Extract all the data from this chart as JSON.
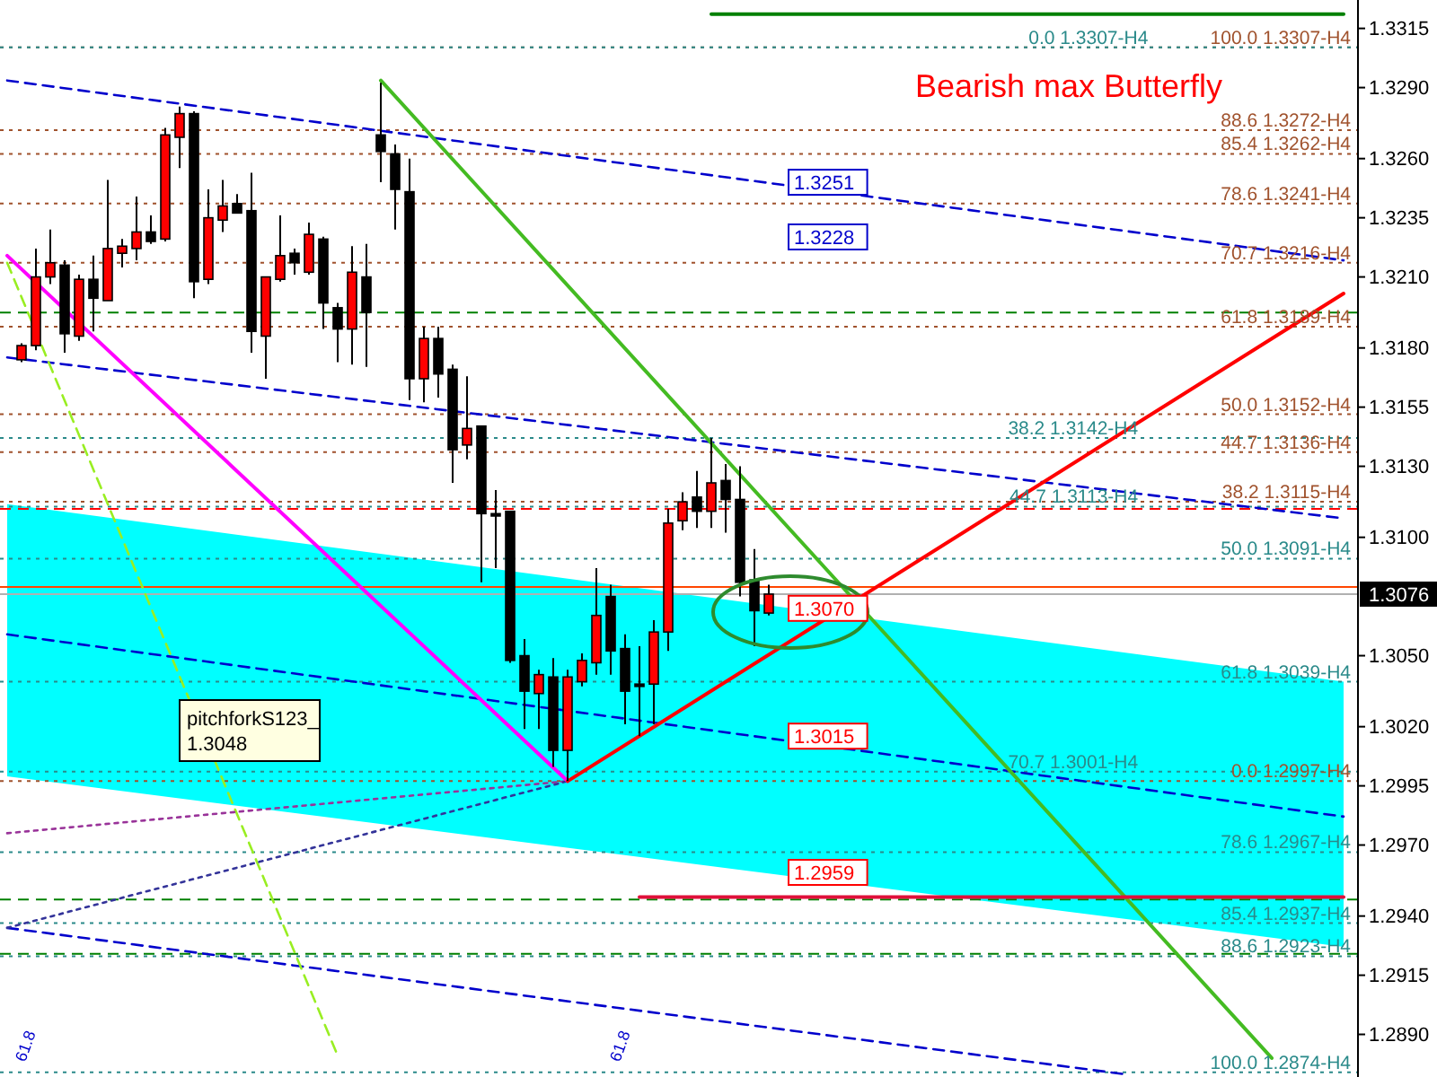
{
  "chart_data": {
    "type": "candlestick",
    "title": "Bearish max Butterfly",
    "categories": [
      null,
      null,
      null,
      null,
      null,
      null,
      null,
      null,
      null,
      null,
      null,
      null,
      null,
      null,
      null,
      null,
      null,
      null,
      null,
      null,
      null,
      null,
      null,
      null,
      null,
      null,
      null,
      null,
      null,
      null,
      null,
      null,
      null,
      null,
      null,
      null,
      null,
      null,
      null,
      null,
      null,
      null,
      null,
      null,
      null,
      null,
      null,
      null,
      null,
      null,
      null,
      null,
      null,
      null,
      null,
      null,
      null,
      null,
      null,
      null,
      null,
      null,
      null,
      null,
      null,
      null,
      null,
      null,
      null,
      null,
      null,
      null,
      null,
      null,
      null,
      null,
      null,
      null,
      null,
      null,
      null,
      null,
      null,
      null,
      null,
      null,
      null,
      null,
      null,
      null,
      null,
      null,
      null,
      null
    ],
    "ohlc": [
      null,
      [
        1.3175,
        1.3182,
        1.3174,
        1.3181
      ],
      [
        1.3181,
        1.3222,
        1.3179,
        1.321
      ],
      [
        1.321,
        1.323,
        1.3207,
        1.3216
      ],
      [
        1.3215,
        1.3217,
        1.3178,
        1.3186
      ],
      [
        1.3185,
        1.3211,
        1.3183,
        1.3209
      ],
      [
        1.3209,
        1.3219,
        1.3187,
        1.3201
      ],
      [
        1.32,
        1.3251,
        1.32,
        1.3222
      ],
      [
        1.322,
        1.3226,
        1.3214,
        1.3223
      ],
      [
        1.3222,
        1.3244,
        1.3217,
        1.3229
      ],
      [
        1.3229,
        1.3236,
        1.3224,
        1.3225
      ],
      [
        1.3226,
        1.3273,
        1.3225,
        1.327
      ],
      [
        1.3269,
        1.3282,
        1.3256,
        1.3279
      ],
      [
        1.3279,
        1.328,
        1.3201,
        1.3208
      ],
      [
        1.3209,
        1.3247,
        1.3207,
        1.3235
      ],
      [
        1.3234,
        1.3251,
        1.3229,
        1.324
      ],
      [
        1.3241,
        1.3245,
        1.3237,
        1.3237
      ],
      [
        1.3238,
        1.3254,
        1.3178,
        1.3187
      ],
      [
        1.3185,
        1.321,
        1.3167,
        1.321
      ],
      [
        1.3209,
        1.3236,
        1.3208,
        1.3219
      ],
      [
        1.322,
        1.3222,
        1.3211,
        1.3216
      ],
      [
        1.3212,
        1.3233,
        1.3211,
        1.3228
      ],
      [
        1.3226,
        1.3227,
        1.3188,
        1.3199
      ],
      [
        1.3197,
        1.3199,
        1.3174,
        1.3188
      ],
      [
        1.3188,
        1.3223,
        1.3173,
        1.3212
      ],
      [
        1.321,
        1.3224,
        1.3172,
        1.3195
      ],
      [
        1.327,
        1.3292,
        1.325,
        1.3263
      ],
      [
        1.3262,
        1.3266,
        1.323,
        1.3247
      ],
      [
        1.3246,
        1.326,
        1.3158,
        1.3167
      ],
      [
        1.3167,
        1.3189,
        1.3157,
        1.3184
      ],
      [
        1.3184,
        1.3189,
        1.3159,
        1.3169
      ],
      [
        1.3171,
        1.3173,
        1.3123,
        1.3137
      ],
      [
        1.3139,
        1.3168,
        1.3133,
        1.3146
      ],
      [
        1.3147,
        1.3147,
        1.3081,
        1.311
      ],
      [
        1.311,
        1.312,
        1.3087,
        1.3109
      ],
      [
        1.3111,
        1.3111,
        1.3047,
        1.3048
      ],
      [
        1.305,
        1.3057,
        1.3019,
        1.3035
      ],
      [
        1.3034,
        1.3044,
        1.3019,
        1.3042
      ],
      [
        1.3041,
        1.3049,
        1.3003,
        1.301
      ],
      [
        1.301,
        1.3044,
        1.2997,
        1.3041
      ],
      [
        1.3039,
        1.3051,
        1.3037,
        1.3048
      ],
      [
        1.3047,
        1.3087,
        1.3042,
        1.3067
      ],
      [
        1.3075,
        1.308,
        1.3042,
        1.3052
      ],
      [
        1.3053,
        1.3059,
        1.3021,
        1.3035
      ],
      [
        1.3038,
        1.3054,
        1.3016,
        1.3037
      ],
      [
        1.3038,
        1.3065,
        1.3021,
        1.306
      ],
      [
        1.306,
        1.3112,
        1.3052,
        1.3106
      ],
      [
        1.3107,
        1.3119,
        1.3103,
        1.3115
      ],
      [
        1.3117,
        1.3128,
        1.3104,
        1.3111
      ],
      [
        1.3111,
        1.3142,
        1.3104,
        1.3123
      ],
      [
        1.3124,
        1.3131,
        1.3102,
        1.3116
      ],
      [
        1.3116,
        1.313,
        1.3075,
        1.3081
      ],
      [
        1.3082,
        1.3095,
        1.3054,
        1.3069
      ],
      [
        1.3068,
        1.308,
        1.3067,
        1.3076
      ],
      null,
      null,
      null,
      null,
      null,
      null,
      null,
      null,
      null,
      null,
      null,
      null,
      null,
      null,
      null,
      null,
      null,
      null,
      null,
      null,
      null,
      null,
      null,
      null,
      null,
      null,
      null,
      null,
      null,
      null,
      null,
      null,
      null,
      null,
      null,
      null,
      null,
      null,
      null,
      null
    ],
    "series": [
      {
        "type": "line",
        "color": "#0000cc",
        "line_style": "dashed",
        "values": [
          1.3059,
          null,
          null,
          null,
          null,
          null,
          null,
          null,
          null,
          null,
          null,
          null,
          null,
          null,
          null,
          null,
          null,
          null,
          null,
          null,
          null,
          null,
          null,
          null,
          null,
          null,
          null,
          null,
          null,
          null,
          null,
          null,
          null,
          null,
          null,
          null,
          null,
          null,
          null,
          null,
          null,
          null,
          null,
          null,
          null,
          null,
          null,
          null,
          null,
          null,
          null,
          null,
          null,
          null,
          null,
          null,
          null,
          null,
          null,
          null,
          null,
          null,
          null,
          null,
          null,
          null,
          null,
          null,
          null,
          null,
          null,
          null,
          null,
          null,
          null,
          null,
          null,
          null,
          null,
          null,
          null,
          null,
          null,
          null,
          null,
          null,
          null,
          null,
          null,
          null,
          null,
          null,
          null,
          1.2982
        ],
        "lower": [
          1.2999,
          null,
          null,
          null,
          null,
          null,
          null,
          null,
          null,
          null,
          null,
          null,
          null,
          null,
          null,
          null,
          null,
          null,
          null,
          null,
          null,
          null,
          null,
          null,
          null,
          null,
          null,
          null,
          null,
          null,
          null,
          null,
          null,
          null,
          null,
          null,
          null,
          null,
          null,
          null,
          null,
          null,
          null,
          null,
          null,
          null,
          null,
          null,
          null,
          null,
          null,
          null,
          null,
          null,
          null,
          null,
          null,
          null,
          null,
          null,
          null,
          null,
          null,
          null,
          null,
          null,
          null,
          null,
          null,
          null,
          null,
          null,
          null,
          null,
          null,
          null,
          null,
          null,
          null,
          null,
          null,
          null,
          null,
          null,
          null,
          null,
          null,
          null,
          null,
          null,
          null,
          null,
          null,
          1.2927
        ],
        "upper": [
          1.3114,
          null,
          null,
          null,
          null,
          null,
          null,
          null,
          null,
          null,
          null,
          null,
          null,
          null,
          null,
          null,
          null,
          null,
          null,
          null,
          null,
          null,
          null,
          null,
          null,
          null,
          null,
          null,
          null,
          null,
          null,
          null,
          null,
          null,
          null,
          null,
          null,
          null,
          null,
          null,
          null,
          null,
          null,
          null,
          null,
          null,
          null,
          null,
          null,
          null,
          null,
          null,
          null,
          null,
          null,
          null,
          null,
          null,
          null,
          null,
          null,
          null,
          null,
          null,
          null,
          null,
          null,
          null,
          null,
          null,
          null,
          null,
          null,
          null,
          null,
          null,
          null,
          null,
          null,
          null,
          null,
          null,
          null,
          null,
          null,
          null,
          null,
          null,
          null,
          null,
          null,
          null,
          null,
          1.3039
        ]
      },
      {
        "type": "line",
        "color": "#0000cc",
        "line_style": "dashed",
        "values": [
          1.3293,
          null,
          null,
          null,
          null,
          null,
          null,
          null,
          null,
          null,
          null,
          null,
          null,
          null,
          null,
          null,
          null,
          null,
          null,
          null,
          null,
          null,
          null,
          null,
          null,
          null,
          null,
          null,
          null,
          null,
          null,
          null,
          null,
          null,
          null,
          null,
          null,
          null,
          null,
          null,
          null,
          null,
          null,
          null,
          null,
          null,
          null,
          null,
          null,
          null,
          null,
          null,
          null,
          null,
          null,
          null,
          null,
          null,
          null,
          null,
          null,
          null,
          null,
          null,
          null,
          null,
          null,
          null,
          null,
          null,
          null,
          null,
          null,
          null,
          null,
          null,
          null,
          null,
          null,
          null,
          null,
          null,
          null,
          null,
          null,
          null,
          null,
          null,
          null,
          null,
          null,
          null,
          null,
          1.3217
        ]
      },
      {
        "type": "line",
        "color": "#0000cc",
        "line_style": "dashed",
        "values": [
          1.3176,
          null,
          null,
          null,
          null,
          null,
          null,
          null,
          null,
          null,
          null,
          null,
          null,
          null,
          null,
          null,
          null,
          null,
          null,
          null,
          null,
          null,
          null,
          null,
          null,
          null,
          null,
          null,
          null,
          null,
          null,
          null,
          null,
          null,
          null,
          null,
          null,
          null,
          null,
          null,
          null,
          null,
          null,
          null,
          null,
          null,
          null,
          null,
          null,
          null,
          null,
          null,
          null,
          null,
          null,
          null,
          null,
          null,
          null,
          null,
          null,
          null,
          null,
          null,
          null,
          null,
          null,
          null,
          null,
          null,
          null,
          null,
          null,
          null,
          null,
          null,
          null,
          null,
          null,
          null,
          null,
          null,
          null,
          null,
          null,
          null,
          null,
          null,
          null,
          null,
          null,
          null,
          null,
          1.3108
        ]
      },
      {
        "type": "line",
        "color": "#0000cc",
        "line_style": "dashed",
        "values": [
          1.2935,
          null,
          null,
          null,
          null,
          null,
          null,
          null,
          null,
          null,
          null,
          null,
          null,
          null,
          null,
          null,
          null,
          null,
          null,
          null,
          null,
          null,
          null,
          null,
          null,
          null,
          null,
          null,
          null,
          null,
          null,
          null,
          null,
          null,
          null,
          null,
          null,
          null,
          null,
          null,
          null,
          null,
          null,
          null,
          null,
          null,
          null,
          null,
          null,
          null,
          null,
          null,
          null,
          null,
          null,
          null,
          null,
          null,
          null,
          null,
          null,
          null,
          null,
          null,
          null,
          null,
          null,
          null,
          null,
          null,
          null,
          null,
          null,
          null,
          null,
          null,
          null,
          null,
          1.2873,
          null,
          null,
          null,
          null,
          null,
          null,
          null,
          null,
          null,
          null,
          null,
          null,
          null,
          null,
          null
        ]
      },
      {
        "type": "line",
        "color": "#99ee22",
        "line_style": "dashed",
        "values": [
          1.3216,
          null,
          null,
          null,
          null,
          null,
          null,
          null,
          null,
          null,
          null,
          null,
          null,
          null,
          null,
          null,
          null,
          null,
          null,
          null,
          null,
          null,
          null,
          1.2881,
          null,
          null,
          null,
          null,
          null,
          null,
          null,
          null,
          null,
          null,
          null,
          null,
          null,
          null,
          null,
          null,
          null,
          null,
          null,
          null,
          null,
          null,
          null,
          null,
          null,
          null,
          null,
          null,
          null,
          null,
          null,
          null,
          null,
          null,
          null,
          null,
          null,
          null,
          null,
          null,
          null,
          null,
          null,
          null,
          null,
          null,
          null,
          null,
          null,
          null,
          null,
          null,
          null,
          null,
          null,
          null,
          null,
          null,
          null,
          null,
          null,
          null,
          null,
          null,
          null,
          null,
          null,
          null,
          null,
          null
        ]
      },
      {
        "type": "line",
        "color": "#993399",
        "line_style": "dotted",
        "values": [
          1.2975,
          null,
          null,
          null,
          null,
          null,
          null,
          null,
          null,
          null,
          null,
          null,
          null,
          null,
          null,
          null,
          null,
          null,
          null,
          null,
          null,
          null,
          null,
          null,
          null,
          null,
          null,
          null,
          null,
          null,
          null,
          null,
          null,
          null,
          null,
          null,
          null,
          null,
          null,
          1.2997,
          null,
          null,
          null,
          null,
          null,
          null,
          null,
          null,
          null,
          null,
          null,
          null,
          null,
          null,
          null,
          null,
          null,
          null,
          null,
          null,
          null,
          null,
          null,
          null,
          null,
          null,
          null,
          null,
          null,
          null,
          null,
          null,
          null,
          null,
          null,
          null,
          null,
          null,
          null,
          null,
          null,
          null,
          null,
          null,
          null,
          null,
          null,
          null,
          null,
          null,
          null,
          null,
          null,
          null
        ]
      },
      {
        "type": "line",
        "color": "#333399",
        "line_style": "dotted",
        "values": [
          1.2935,
          null,
          null,
          null,
          null,
          null,
          null,
          null,
          null,
          null,
          null,
          null,
          null,
          null,
          null,
          null,
          null,
          null,
          null,
          null,
          null,
          null,
          null,
          null,
          null,
          null,
          null,
          null,
          null,
          null,
          null,
          null,
          null,
          null,
          null,
          null,
          null,
          null,
          null,
          1.2997,
          null,
          null,
          null,
          null,
          null,
          null,
          null,
          null,
          null,
          null,
          null,
          null,
          null,
          null,
          null,
          null,
          null,
          null,
          null,
          null,
          null,
          null,
          null,
          null,
          null,
          null,
          null,
          null,
          null,
          null,
          null,
          null,
          null,
          null,
          null,
          null,
          null,
          null,
          null,
          null,
          null,
          null,
          null,
          null,
          null,
          null,
          null,
          null,
          null,
          null,
          null,
          null,
          null,
          null
        ]
      },
      {
        "type": "line",
        "color": "#ff00ff",
        "line_style": "solid",
        "values": [
          1.3219,
          null,
          null,
          null,
          null,
          null,
          null,
          null,
          null,
          null,
          null,
          null,
          null,
          null,
          null,
          null,
          null,
          null,
          null,
          null,
          null,
          null,
          null,
          null,
          null,
          null,
          null,
          null,
          null,
          null,
          null,
          null,
          null,
          null,
          null,
          null,
          null,
          null,
          null,
          1.2997,
          null,
          null,
          null,
          null,
          null,
          null,
          null,
          null,
          null,
          null,
          null,
          null,
          null,
          null,
          null,
          null,
          null,
          null,
          null,
          null,
          null,
          null,
          null,
          null,
          null,
          null,
          null,
          null,
          null,
          null,
          null,
          null,
          null,
          null,
          null,
          null,
          null,
          null,
          null,
          null,
          null,
          null,
          null,
          null,
          null,
          null,
          null,
          null,
          null,
          null,
          null,
          null,
          null,
          null
        ]
      },
      {
        "type": "line",
        "color": "#44bb22",
        "line_style": "solid",
        "values": [
          null,
          null,
          null,
          null,
          null,
          null,
          null,
          null,
          null,
          null,
          null,
          null,
          null,
          null,
          null,
          null,
          null,
          null,
          null,
          null,
          null,
          null,
          null,
          null,
          null,
          null,
          1.3293,
          null,
          null,
          null,
          null,
          null,
          null,
          null,
          null,
          null,
          null,
          null,
          null,
          null,
          null,
          null,
          null,
          null,
          null,
          null,
          null,
          null,
          null,
          null,
          null,
          null,
          null,
          null,
          null,
          null,
          null,
          null,
          null,
          null,
          null,
          null,
          null,
          null,
          null,
          null,
          null,
          null,
          null,
          null,
          null,
          null,
          null,
          null,
          null,
          null,
          null,
          null,
          null,
          null,
          null,
          null,
          null,
          null,
          null,
          null,
          null,
          null,
          1.288,
          null,
          null,
          null,
          null,
          null
        ]
      },
      {
        "type": "line",
        "color": "#ff0000",
        "line_style": "solid",
        "values": [
          null,
          null,
          null,
          null,
          null,
          null,
          null,
          null,
          null,
          null,
          null,
          null,
          null,
          null,
          null,
          null,
          null,
          null,
          null,
          null,
          null,
          null,
          null,
          null,
          null,
          null,
          null,
          null,
          null,
          null,
          null,
          null,
          null,
          null,
          null,
          null,
          null,
          null,
          null,
          1.2997,
          null,
          null,
          null,
          null,
          null,
          null,
          null,
          null,
          null,
          null,
          null,
          null,
          null,
          null,
          null,
          null,
          null,
          null,
          null,
          null,
          null,
          null,
          null,
          null,
          null,
          null,
          null,
          null,
          null,
          null,
          null,
          null,
          null,
          null,
          null,
          null,
          null,
          null,
          null,
          null,
          null,
          null,
          null,
          null,
          null,
          null,
          null,
          null,
          null,
          null,
          null,
          null,
          null,
          1.3203
        ]
      },
      {
        "type": "line",
        "color": "#008000",
        "line_style": "solid",
        "values": [
          null,
          null,
          null,
          null,
          null,
          null,
          null,
          null,
          null,
          null,
          null,
          null,
          null,
          null,
          null,
          null,
          null,
          null,
          null,
          null,
          null,
          null,
          null,
          null,
          null,
          null,
          null,
          null,
          null,
          null,
          null,
          null,
          null,
          null,
          null,
          null,
          null,
          null,
          null,
          null,
          null,
          null,
          null,
          null,
          null,
          null,
          null,
          null,
          null,
          1.3321,
          null,
          null,
          null,
          null,
          null,
          null,
          null,
          null,
          null,
          null,
          null,
          null,
          null,
          null,
          null,
          null,
          null,
          null,
          null,
          null,
          null,
          null,
          null,
          null,
          null,
          null,
          null,
          null,
          null,
          null,
          null,
          null,
          null,
          null,
          null,
          null,
          null,
          null,
          null,
          null,
          null,
          null,
          null,
          1.3321
        ]
      },
      {
        "type": "line",
        "color": "#e0103a",
        "line_style": "solid",
        "values": [
          null,
          null,
          null,
          null,
          null,
          null,
          null,
          null,
          null,
          null,
          null,
          null,
          null,
          null,
          null,
          null,
          null,
          null,
          null,
          null,
          null,
          null,
          null,
          null,
          null,
          null,
          null,
          null,
          null,
          null,
          null,
          null,
          null,
          null,
          null,
          null,
          null,
          null,
          null,
          null,
          null,
          null,
          null,
          null,
          1.2948,
          null,
          null,
          null,
          null,
          null,
          null,
          null,
          null,
          null,
          null,
          null,
          null,
          null,
          null,
          null,
          null,
          null,
          null,
          null,
          null,
          null,
          null,
          null,
          null,
          null,
          null,
          null,
          null,
          null,
          null,
          null,
          null,
          null,
          null,
          null,
          null,
          null,
          null,
          null,
          null,
          null,
          null,
          null,
          null,
          null,
          null,
          null,
          null,
          1.2948
        ]
      }
    ],
    "ref_lines": [
      {
        "axis": "y",
        "value": 1.3307,
        "label": "100.0 1.3307-H4",
        "color": "#a0522d",
        "line_style": "dotted"
      },
      {
        "axis": "y",
        "value": 1.3272,
        "label": "88.6 1.3272-H4",
        "color": "#a0522d",
        "line_style": "dotted"
      },
      {
        "axis": "y",
        "value": 1.3262,
        "label": "85.4 1.3262-H4",
        "color": "#a0522d",
        "line_style": "dotted"
      },
      {
        "axis": "y",
        "value": 1.3241,
        "label": "78.6 1.3241-H4",
        "color": "#a0522d",
        "line_style": "dotted"
      },
      {
        "axis": "y",
        "value": 1.3216,
        "label": "70.7 1.3216-H4",
        "color": "#a0522d",
        "line_style": "dotted"
      },
      {
        "axis": "y",
        "value": 1.3189,
        "label": "61.8 1.3189-H4",
        "color": "#a0522d",
        "line_style": "dotted"
      },
      {
        "axis": "y",
        "value": 1.3152,
        "label": "50.0 1.3152-H4",
        "color": "#a0522d",
        "line_style": "dotted"
      },
      {
        "axis": "y",
        "value": 1.3136,
        "label": "44.7 1.3136-H4",
        "color": "#a0522d",
        "line_style": "dotted"
      },
      {
        "axis": "y",
        "value": 1.3115,
        "label": "38.2 1.3115-H4",
        "color": "#a0522d",
        "line_style": "dotted"
      },
      {
        "axis": "y",
        "value": 1.2997,
        "label": "0.0 1.2997-H4",
        "color": "#a0522d",
        "line_style": "dotted"
      },
      {
        "axis": "y",
        "value": 1.3307,
        "label": "0.0 1.3307-H4",
        "color": "#2a8a8a",
        "line_style": "dotted"
      },
      {
        "axis": "y",
        "value": 1.3142,
        "label": "38.2 1.3142-H4",
        "color": "#2a8a8a",
        "line_style": "dotted"
      },
      {
        "axis": "y",
        "value": 1.3113,
        "label": "44.7 1.3113-H4",
        "color": "#2a8a8a",
        "line_style": "dotted"
      },
      {
        "axis": "y",
        "value": 1.3091,
        "label": "50.0 1.3091-H4",
        "color": "#2a8a8a",
        "line_style": "dotted"
      },
      {
        "axis": "y",
        "value": 1.3039,
        "label": "61.8 1.3039-H4",
        "color": "#2a8a8a",
        "line_style": "dotted"
      },
      {
        "axis": "y",
        "value": 1.3001,
        "label": "70.7 1.3001-H4",
        "color": "#2a8a8a",
        "line_style": "dotted"
      },
      {
        "axis": "y",
        "value": 1.2967,
        "label": "78.6 1.2967-H4",
        "color": "#2a8a8a",
        "line_style": "dotted"
      },
      {
        "axis": "y",
        "value": 1.2937,
        "label": "85.4 1.2937-H4",
        "color": "#2a8a8a",
        "line_style": "dotted"
      },
      {
        "axis": "y",
        "value": 1.2923,
        "label": "88.6 1.2923-H4",
        "color": "#2a8a8a",
        "line_style": "dotted"
      },
      {
        "axis": "y",
        "value": 1.2874,
        "label": "100.0 1.2874-H4",
        "color": "#2a8a8a",
        "line_style": "dotted"
      },
      {
        "axis": "y",
        "value": 1.3112,
        "color": "#ff0000",
        "line_style": "dashed"
      },
      {
        "axis": "y",
        "value": 1.3195,
        "color": "#008000",
        "line_style": "dashed"
      },
      {
        "axis": "y",
        "value": 1.2947,
        "color": "#008000",
        "line_style": "dashed"
      },
      {
        "axis": "y",
        "value": 1.2924,
        "color": "#008000",
        "line_style": "dashed"
      },
      {
        "axis": "y",
        "value": 1.3079,
        "color": "#ff4500",
        "line_style": "solid"
      },
      {
        "axis": "y",
        "value": 1.3076,
        "label": "1.3076",
        "color": "#b0b0b0",
        "line_style": "solid"
      }
    ],
    "annotations": [
      "pitchforkS123_\n1.3048",
      "61.8",
      "61.8",
      "1.3228",
      "1.2959",
      {
        "text": "1.3251",
        "y": 1.325
      },
      {
        "text": "1.3070",
        "y": 1.307
      },
      {
        "text": "1.3015",
        "y": 1.3016
      }
    ],
    "ylim": [
      1.2872,
      1.3327
    ],
    "yticks": [
      1.3315,
      {
        "value": 1.329,
        "label": "1.3290"
      },
      {
        "value": 1.326,
        "label": "1.3260"
      },
      1.3235,
      {
        "value": 1.321,
        "label": "1.3210"
      },
      {
        "value": 1.318,
        "label": "1.3180"
      },
      1.3155,
      {
        "value": 1.313,
        "label": "1.3130"
      },
      {
        "value": 1.31,
        "label": "1.3100"
      },
      {
        "value": 1.305,
        "label": "1.3050"
      },
      {
        "value": 1.302,
        "label": "1.3020"
      },
      1.2995,
      {
        "value": 1.297,
        "label": "1.2970"
      },
      {
        "value": 1.294,
        "label": "1.2940"
      },
      1.2915,
      {
        "value": 1.289,
        "label": "1.2890"
      }
    ],
    "tick_labels": "y"
  }
}
